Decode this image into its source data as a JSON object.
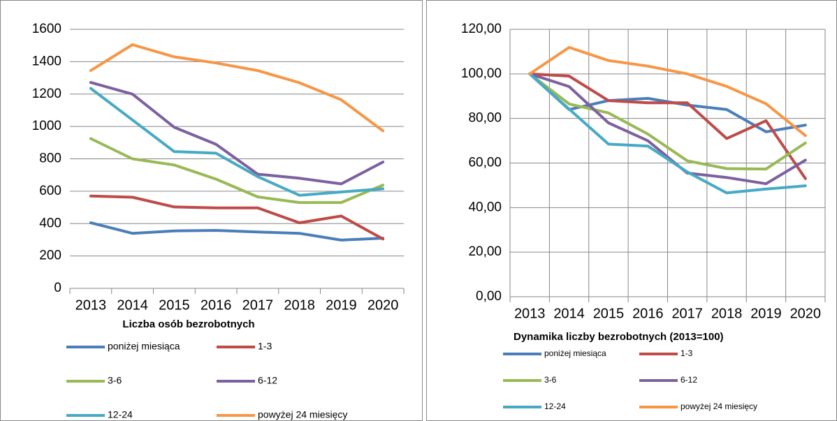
{
  "chart_data": [
    {
      "type": "line",
      "title": "Liczba osób bezrobotnych",
      "categories": [
        "2013",
        "2014",
        "2015",
        "2016",
        "2017",
        "2018",
        "2019",
        "2020"
      ],
      "ylim": [
        0,
        1600
      ],
      "yticks": [
        0,
        200,
        400,
        600,
        800,
        1000,
        1200,
        1400,
        1600
      ],
      "grid": true,
      "xgrid": false,
      "series": [
        {
          "name": "poniżej miesiąca",
          "color": "#4a7ebb",
          "values": [
            405,
            340,
            355,
            358,
            348,
            340,
            298,
            310
          ]
        },
        {
          "name": "1-3",
          "color": "#be4b48",
          "values": [
            570,
            563,
            503,
            497,
            497,
            405,
            447,
            305
          ]
        },
        {
          "name": "3-6",
          "color": "#98b954",
          "values": [
            925,
            800,
            762,
            675,
            565,
            530,
            530,
            638
          ]
        },
        {
          "name": "6-12",
          "color": "#7d60a0",
          "values": [
            1272,
            1200,
            995,
            890,
            705,
            680,
            645,
            780
          ]
        },
        {
          "name": "12-24",
          "color": "#46aac5",
          "values": [
            1235,
            1040,
            845,
            835,
            690,
            575,
            595,
            615
          ]
        },
        {
          "name": "powyżej 24 miesięcy",
          "color": "#f79646",
          "values": [
            1345,
            1505,
            1430,
            1392,
            1345,
            1270,
            1165,
            973
          ]
        }
      ]
    },
    {
      "type": "line",
      "title": "Dynamika liczby bezrobotnych (2013=100)",
      "categories": [
        "2013",
        "2014",
        "2015",
        "2016",
        "2017",
        "2018",
        "2019",
        "2020"
      ],
      "ylim": [
        0,
        120
      ],
      "yticks": [
        {
          "value": 0,
          "label": "0,00"
        },
        {
          "value": 20,
          "label": "20,00"
        },
        {
          "value": 40,
          "label": "40,00"
        },
        {
          "value": 60,
          "label": "60,00"
        },
        {
          "value": 80,
          "label": "80,00"
        },
        {
          "value": 100,
          "label": "100,00"
        },
        {
          "value": 120,
          "label": "120,00"
        }
      ],
      "grid": true,
      "xgrid": true,
      "series": [
        {
          "name": "poniżej miesiąca",
          "color": "#4a7ebb",
          "values": [
            100,
            84,
            88,
            89,
            86,
            84,
            74,
            77
          ]
        },
        {
          "name": "1-3",
          "color": "#be4b48",
          "values": [
            100,
            99,
            88,
            87,
            87,
            71,
            79,
            53
          ]
        },
        {
          "name": "3-6",
          "color": "#98b954",
          "values": [
            100,
            86.5,
            82.5,
            73,
            61,
            57.5,
            57.3,
            69
          ]
        },
        {
          "name": "6-12",
          "color": "#7d60a0",
          "values": [
            100,
            94.3,
            78,
            70,
            55.5,
            53.5,
            50.7,
            61.3
          ]
        },
        {
          "name": "12-24",
          "color": "#46aac5",
          "values": [
            100,
            84.2,
            68.5,
            67.6,
            56,
            46.6,
            48.3,
            49.8
          ]
        },
        {
          "name": "powyżej 24 miesięcy",
          "color": "#f79646",
          "values": [
            100,
            111.9,
            106,
            103.5,
            100,
            94.4,
            86.6,
            72.3
          ]
        }
      ]
    }
  ]
}
